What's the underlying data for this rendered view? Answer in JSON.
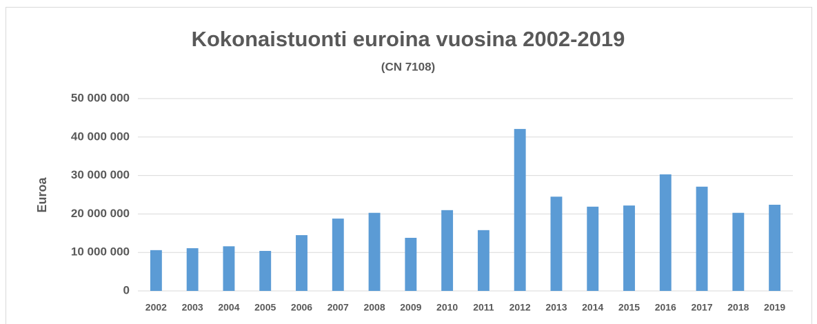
{
  "chart_data": {
    "type": "bar",
    "title": "Kokonaistuonti euroina vuosina 2002-2019",
    "subtitle": "(CN 7108)",
    "y_label": "Euroa",
    "categories": [
      "2002",
      "2003",
      "2004",
      "2005",
      "2006",
      "2007",
      "2008",
      "2009",
      "2010",
      "2011",
      "2012",
      "2013",
      "2014",
      "2015",
      "2016",
      "2017",
      "2018",
      "2019"
    ],
    "values": [
      10600000,
      11100000,
      11600000,
      10400000,
      14500000,
      18800000,
      20300000,
      13800000,
      21000000,
      15800000,
      42100000,
      24500000,
      21900000,
      22200000,
      30300000,
      27100000,
      20300000,
      22400000
    ],
    "color": "#5b9bd5",
    "ylim": [
      0,
      50000000
    ],
    "yticks": [
      0,
      {
        "value": 10000000,
        "label": "10 000 000"
      },
      {
        "value": 20000000,
        "label": "20 000 000"
      },
      {
        "value": 30000000,
        "label": "30 000 000"
      },
      {
        "value": 40000000,
        "label": "40 000 000"
      },
      {
        "value": 50000000,
        "label": "50 000 000"
      }
    ],
    "grid": true
  }
}
